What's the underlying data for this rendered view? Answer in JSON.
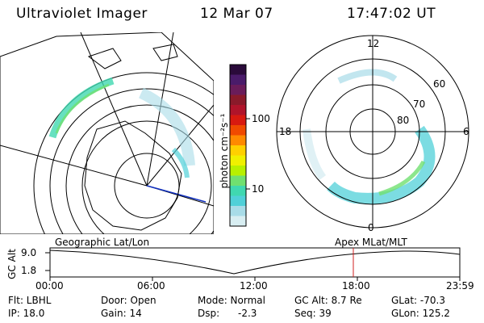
{
  "header": {
    "title": "Ultraviolet Imager",
    "date": "12 Mar 07",
    "time": "17:47:02 UT"
  },
  "colorbar": {
    "label": "photon cm⁻²s⁻¹",
    "ticks": [
      "100",
      "10"
    ],
    "colors": [
      "#2a0a3a",
      "#4a1b6a",
      "#6a1c5a",
      "#8a1a2a",
      "#b0142a",
      "#d81a10",
      "#f04a00",
      "#ff8a00",
      "#ffd000",
      "#f0f000",
      "#b8f000",
      "#70e070",
      "#40d8b0",
      "#50d0d8",
      "#a8dce8",
      "#d8eef2"
    ]
  },
  "polar_plot": {
    "labels": [
      "12",
      "60",
      "70",
      "80",
      "18",
      "6",
      "0"
    ]
  },
  "timeline": {
    "left_title": "Geographic Lat/Lon",
    "right_title": "Apex MLat/MLT",
    "axis_label": "GC Alt",
    "y_ticks": [
      "9.0",
      "1.8"
    ],
    "x_ticks": [
      "00:00",
      "06:00",
      "12:00",
      "18:00",
      "23:59"
    ],
    "marker_color": "#d02020"
  },
  "info": {
    "flt": "Flt: LBHL",
    "ip": "IP: 18.0",
    "door": "Door: Open",
    "gain": "Gain: 14",
    "mode": "Mode: Normal",
    "dsp_label": "Dsp:",
    "dsp_value": "-2.3",
    "gc_alt": "GC Alt: 8.7 Re",
    "seq": "Seq: 39",
    "glat": "GLat: -70.3",
    "glon": "GLon: 125.2"
  }
}
